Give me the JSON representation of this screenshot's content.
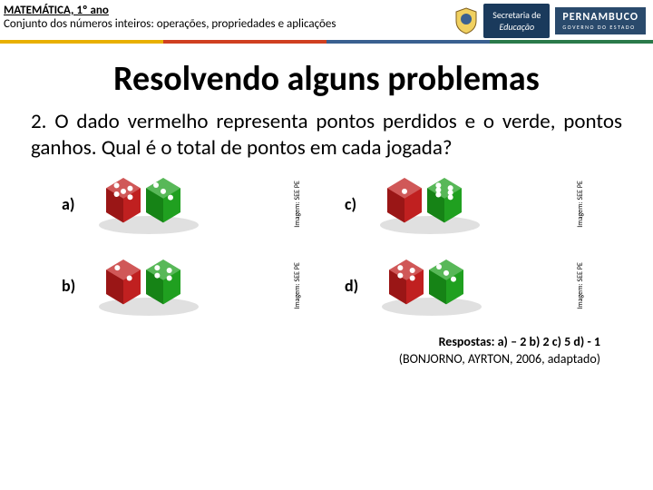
{
  "header": {
    "subject": "MATEMÁTICA, 1º ano",
    "subtitle": "Conjunto dos números inteiros: operações, propriedades e aplicações",
    "sec_line1": "Secretaria de",
    "sec_line2": "Educação",
    "pe_big": "PERNAMBUCO",
    "pe_small": "GOVERNO DO ESTADO"
  },
  "stripe_colors": [
    "#e8b000",
    "#d04020",
    "#3a6090",
    "#2a7a4a"
  ],
  "title": "Resolvendo alguns problemas",
  "question": "2. O dado vermelho representa pontos perdidos e o verde, pontos ganhos. Qual é o total de pontos em cada jogada?",
  "items": {
    "a": {
      "label": "a)",
      "red_pips": 5,
      "green_pips": 3,
      "credit": "Imagem: SEE PE"
    },
    "b": {
      "label": "b)",
      "red_pips": 2,
      "green_pips": 4,
      "credit": "Imagem: SEE PE"
    },
    "c": {
      "label": "c)",
      "red_pips": 1,
      "green_pips": 6,
      "credit": "Imagem: SEE PE"
    },
    "d": {
      "label": "d)",
      "red_pips": 4,
      "green_pips": 3,
      "credit": "Imagem: SEE PE"
    }
  },
  "answers": "Respostas: a) – 2 b) 2 c) 5 d) - 1",
  "source": "(BONJORNO, AYRTON, 2006, adaptado)",
  "colors": {
    "red_die": "#c02020",
    "red_die_dark": "#801010",
    "green_die": "#20a020",
    "green_die_dark": "#107010",
    "pip": "#ffffff",
    "header_bg": "#1a3a5c"
  }
}
